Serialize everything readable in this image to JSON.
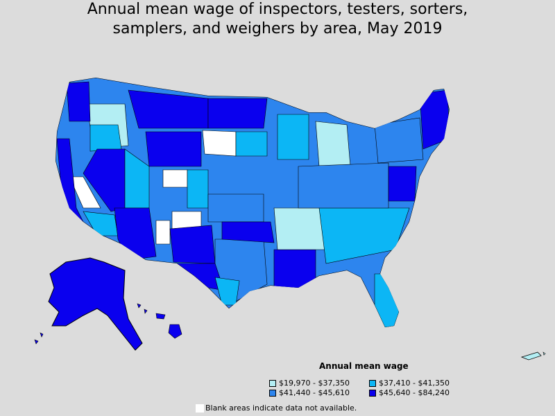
{
  "title": {
    "line1": "Annual mean wage of inspectors, testers, sorters,",
    "line2": "samplers, and weighers by area, May 2019"
  },
  "legend": {
    "title": "Annual mean wage",
    "items": [
      {
        "label": "$19,970 - $37,350",
        "color": "#b3eef3"
      },
      {
        "label": "$37,410 - $41,350",
        "color": "#0cb6f5"
      },
      {
        "label": "$41,440 - $45,610",
        "color": "#2d85ee"
      },
      {
        "label": "$45,640 - $84,240",
        "color": "#0a00ee"
      }
    ]
  },
  "note": "Blank areas indicate data not available.",
  "colors": {
    "background": "#dcdcdc",
    "no_data": "#ffffff",
    "border": "#000000"
  }
}
